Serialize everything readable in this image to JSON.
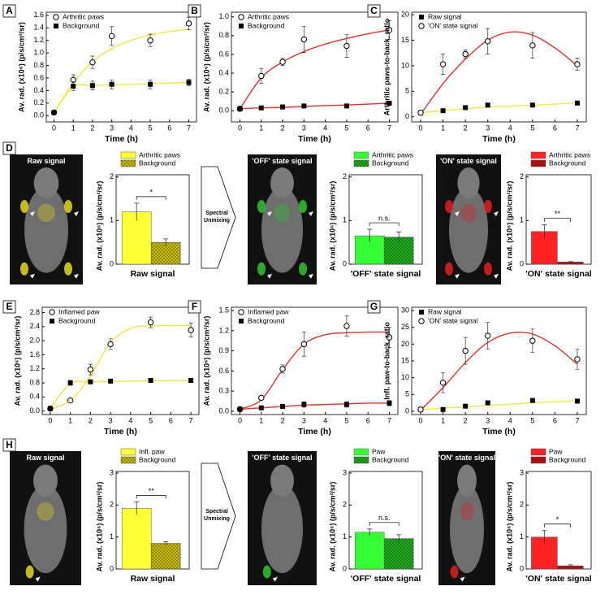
{
  "figure": {
    "image_rows": [
      {
        "panel": "D",
        "images": [
          "Raw signal",
          "'OFF' state signal",
          "'ON' state signal"
        ],
        "arrow": "Spectral Unmixing"
      },
      {
        "panel": "H",
        "images": [
          "Raw signal",
          "'OFF' state signal",
          "'ON' state signal"
        ],
        "arrow": "Spectral Unmixing"
      }
    ]
  },
  "chart_data": [
    {
      "type": "line",
      "panel": "A",
      "x_label": "Time (h)",
      "y_label": "Av. rad. (x10⁶) (p/s/cm²/sr)",
      "legend": "upper left",
      "xlim": [
        -0.4,
        7.4
      ],
      "xticks": [
        0,
        1,
        2,
        3,
        4,
        5,
        6,
        7
      ],
      "ylim": [
        -0.1,
        1.65
      ],
      "yticks": [
        {
          "value": 0,
          "label": "0.0"
        },
        0.2,
        0.4,
        0.6,
        0.8,
        {
          "value": 1,
          "label": "1.0"
        },
        1.2,
        1.4,
        1.6
      ],
      "x": [
        0,
        1,
        2,
        3,
        5,
        7
      ],
      "fit_x": [
        0,
        1,
        2,
        3,
        4,
        5,
        6,
        7
      ],
      "series": [
        {
          "name": "Arthritic paws",
          "marker": "open-circle",
          "color": "#000000",
          "fit_color": "#f5e63c",
          "values": [
            0.05,
            0.57,
            0.85,
            1.27,
            1.2,
            1.47
          ],
          "errors": [
            0.03,
            0.08,
            0.1,
            0.15,
            0.1,
            0.1
          ],
          "fit": [
            0.05,
            0.52,
            0.86,
            1.07,
            1.2,
            1.29,
            1.34,
            1.38
          ]
        },
        {
          "name": "Background",
          "marker": "filled-square",
          "color": "#000000",
          "fit_color": "#f5e63c",
          "values": [
            0.05,
            0.47,
            0.48,
            0.5,
            0.5,
            0.53
          ],
          "errors": [
            0.03,
            0.07,
            0.07,
            0.07,
            0.07,
            0.05
          ],
          "fit": [
            0.05,
            0.46,
            0.48,
            0.49,
            0.5,
            0.51,
            0.52,
            0.53
          ]
        }
      ]
    },
    {
      "type": "line",
      "panel": "B",
      "x_label": "Time (h)",
      "y_label": "Av. rad. (x10⁶) (p/s/cm²/sr)",
      "legend": "upper left",
      "xlim": [
        -0.4,
        7.4
      ],
      "xticks": [
        0,
        1,
        2,
        3,
        4,
        5,
        6,
        7
      ],
      "ylim": [
        -0.12,
        1.05
      ],
      "yticks": [
        {
          "value": 0,
          "label": "0.0"
        },
        0.2,
        0.4,
        0.6,
        0.8,
        {
          "value": 1,
          "label": "1.0"
        }
      ],
      "x": [
        0,
        1,
        2,
        3,
        5,
        7
      ],
      "fit_x": [
        0,
        1,
        2,
        3,
        4,
        5,
        6,
        7
      ],
      "series": [
        {
          "name": "Arthritic paws",
          "marker": "open-circle",
          "color": "#000000",
          "fit_color": "#e0302c",
          "values": [
            0.02,
            0.37,
            0.52,
            0.76,
            0.69,
            0.86
          ],
          "errors": [
            0.02,
            0.08,
            0.04,
            0.14,
            0.12,
            0.1
          ],
          "fit": [
            0.02,
            0.35,
            0.52,
            0.63,
            0.71,
            0.77,
            0.82,
            0.86
          ]
        },
        {
          "name": "Background",
          "marker": "filled-square",
          "color": "#000000",
          "fit_color": "#e0302c",
          "values": [
            0.02,
            0.03,
            0.04,
            0.05,
            0.05,
            0.08
          ],
          "errors": [
            0.01,
            0.01,
            0.01,
            0.01,
            0.01,
            0.01
          ],
          "fit": [
            0.02,
            0.03,
            0.035,
            0.045,
            0.055,
            0.06,
            0.07,
            0.08
          ]
        }
      ]
    },
    {
      "type": "line",
      "panel": "C",
      "x_label": "Time (h)",
      "y_label": "Arthritic paws-to-back. ratio",
      "legend": "upper left",
      "xlim": [
        -0.4,
        7.4
      ],
      "xticks": [
        0,
        1,
        2,
        3,
        4,
        5,
        6,
        7
      ],
      "ylim": [
        -1,
        20.5
      ],
      "yticks": [
        0,
        5,
        10,
        15,
        20
      ],
      "x": [
        0,
        1,
        2,
        3,
        5,
        7
      ],
      "fit_x": [
        0,
        1,
        2,
        3,
        4,
        5,
        6,
        7
      ],
      "series": [
        {
          "name": "Raw signal",
          "marker": "filled-square",
          "color": "#000000",
          "fit_color": "#f5e63c",
          "values": [
            0.8,
            1.2,
            1.8,
            2.3,
            2.3,
            2.7
          ],
          "errors": [
            0.2,
            0.3,
            0.3,
            0.3,
            0.3,
            0.3
          ],
          "fit": [
            0.8,
            1.2,
            1.6,
            1.9,
            2.1,
            2.3,
            2.5,
            2.7
          ]
        },
        {
          "name": "'ON' state signal",
          "marker": "open-circle",
          "color": "#000000",
          "fit_color": "#e0302c",
          "values": [
            0.8,
            10.3,
            12.3,
            14.8,
            14,
            10.3
          ],
          "errors": [
            0.3,
            2,
            0.8,
            2.5,
            2.5,
            1.2
          ],
          "fit": [
            0.5,
            6.5,
            11.3,
            15,
            16.6,
            16,
            13.5,
            10
          ]
        }
      ]
    },
    {
      "type": "bar",
      "y_label": "Av. rad. (x10⁶) (p/s/cm²/sr)",
      "x_label": "Raw signal",
      "annotation": "*",
      "ylim": [
        0,
        2.05
      ],
      "yticks": [
        0,
        1,
        2
      ],
      "series": [
        {
          "name": "Arthritic paws",
          "color": "#ffff33",
          "hatch": false,
          "values": [
            1.2
          ],
          "errors": [
            0.2
          ]
        },
        {
          "name": "Background",
          "color": "#d9c800",
          "hatch": true,
          "values": [
            0.5
          ],
          "errors": [
            0.08
          ]
        }
      ]
    },
    {
      "type": "bar",
      "y_label": "Av. rad. (x10⁶) (p/s/cm²/sr)",
      "x_label": "'OFF' state signal",
      "annotation": "n.s.",
      "ylim": [
        0,
        2.05
      ],
      "yticks": [
        0,
        1,
        2
      ],
      "series": [
        {
          "name": "Arthritic paws",
          "color": "#33ff33",
          "hatch": false,
          "values": [
            0.65
          ],
          "errors": [
            0.15
          ]
        },
        {
          "name": "Background",
          "color": "#22bb22",
          "hatch": true,
          "values": [
            0.62
          ],
          "errors": [
            0.12
          ]
        }
      ]
    },
    {
      "type": "bar",
      "y_label": "Av. rad. (x10⁶) (p/s/cm²/sr)",
      "x_label": "'ON' state signal",
      "annotation": "**",
      "ylim": [
        0,
        2.05
      ],
      "yticks": [
        0,
        1,
        2
      ],
      "series": [
        {
          "name": "Arthritic paws",
          "color": "#ff2222",
          "hatch": false,
          "values": [
            0.75
          ],
          "errors": [
            0.15
          ]
        },
        {
          "name": "Background",
          "color": "#aa1010",
          "hatch": false,
          "values": [
            0.05
          ],
          "errors": [
            0.01
          ]
        }
      ]
    },
    {
      "type": "line",
      "panel": "E",
      "x_label": "Time (h)",
      "y_label": "Av. rad. (x10⁶) (p/s/cm²/sr)",
      "legend": "upper left",
      "xlim": [
        -0.4,
        7.4
      ],
      "xticks": [
        0,
        1,
        2,
        3,
        4,
        5,
        6,
        7
      ],
      "ylim": [
        -0.1,
        2.95
      ],
      "yticks": [
        {
          "value": 0,
          "label": "0.0"
        },
        0.4,
        0.8,
        1.2,
        1.6,
        {
          "value": 2,
          "label": "2.0"
        },
        2.4,
        2.8
      ],
      "x": [
        0,
        1,
        2,
        3,
        5,
        7
      ],
      "fit_x": [
        0,
        1,
        2,
        3,
        4,
        5,
        6,
        7
      ],
      "series": [
        {
          "name": "Inflamed paw",
          "marker": "open-circle",
          "color": "#000000",
          "fit_color": "#f5e63c",
          "values": [
            0.07,
            0.3,
            1.18,
            1.9,
            2.52,
            2.3
          ],
          "errors": [
            0.05,
            0.05,
            0.15,
            0.15,
            0.15,
            0.2
          ],
          "fit": [
            0.05,
            0.3,
            1.0,
            1.95,
            2.35,
            2.42,
            2.43,
            2.43
          ]
        },
        {
          "name": "Background",
          "marker": "filled-square",
          "color": "#000000",
          "fit_color": "#f5e63c",
          "values": [
            0.07,
            0.8,
            0.83,
            0.85,
            0.87,
            0.87
          ],
          "errors": [
            0.05,
            0.07,
            0.05,
            0.05,
            0.05,
            0.05
          ],
          "fit": [
            0.07,
            0.78,
            0.82,
            0.84,
            0.85,
            0.86,
            0.86,
            0.86
          ]
        }
      ]
    },
    {
      "type": "line",
      "panel": "F",
      "x_label": "Time (h)",
      "y_label": "Av. rad. (x10⁶) (p/s/cm²/sr)",
      "legend": "upper left",
      "xlim": [
        -0.4,
        7.4
      ],
      "xticks": [
        0,
        1,
        2,
        3,
        4,
        5,
        6,
        7
      ],
      "ylim": [
        -0.05,
        1.55
      ],
      "yticks": [
        {
          "value": 0,
          "label": "0.0"
        },
        0.3,
        0.6,
        0.9,
        1.2,
        1.5
      ],
      "x": [
        0,
        1,
        2,
        3,
        5,
        7
      ],
      "fit_x": [
        0,
        1,
        2,
        3,
        4,
        5,
        6,
        7
      ],
      "series": [
        {
          "name": "Inflamed paw",
          "marker": "open-circle",
          "color": "#000000",
          "fit_color": "#e0302c",
          "values": [
            0.03,
            0.2,
            0.63,
            1.0,
            1.27,
            1.1
          ],
          "errors": [
            0.02,
            0.03,
            0.06,
            0.18,
            0.15,
            0.15
          ],
          "fit": [
            0.03,
            0.17,
            0.62,
            1.0,
            1.14,
            1.17,
            1.18,
            1.18
          ]
        },
        {
          "name": "Background",
          "marker": "filled-square",
          "color": "#000000",
          "fit_color": "#e0302c",
          "values": [
            0.03,
            0.05,
            0.07,
            0.1,
            0.1,
            0.12
          ],
          "errors": [
            0.02,
            0.02,
            0.03,
            0.04,
            0.04,
            0.04
          ],
          "fit": [
            0.03,
            0.05,
            0.07,
            0.09,
            0.1,
            0.11,
            0.12,
            0.12
          ]
        }
      ]
    },
    {
      "type": "line",
      "panel": "G",
      "x_label": "Time (h)",
      "y_label": "Infl. paw-to-back. ratio",
      "legend": "upper left",
      "xlim": [
        -0.4,
        7.4
      ],
      "xticks": [
        0,
        1,
        2,
        3,
        4,
        5,
        6,
        7
      ],
      "ylim": [
        -1,
        31
      ],
      "yticks": [
        0,
        5,
        10,
        15,
        20,
        25,
        30
      ],
      "x": [
        0,
        1,
        2,
        3,
        5,
        7
      ],
      "fit_x": [
        0,
        1,
        2,
        3,
        4,
        5,
        6,
        7
      ],
      "series": [
        {
          "name": "Raw signal",
          "marker": "filled-square",
          "color": "#000000",
          "fit_color": "#f5e63c",
          "values": [
            0.5,
            0.5,
            1.5,
            2.5,
            3.2,
            3
          ],
          "errors": [
            0.2,
            0.2,
            0.3,
            0.3,
            0.3,
            0.3
          ],
          "fit": [
            0.5,
            0.9,
            1.3,
            1.7,
            2.1,
            2.5,
            2.8,
            3.1
          ]
        },
        {
          "name": "'ON' state signal",
          "marker": "open-circle",
          "color": "#000000",
          "fit_color": "#e0302c",
          "values": [
            0.5,
            8.5,
            18,
            22.5,
            21,
            15.5
          ],
          "errors": [
            0.3,
            3,
            4,
            4,
            3.5,
            3
          ],
          "fit": [
            0.3,
            7,
            14.5,
            20.5,
            23.3,
            23,
            19.5,
            14
          ]
        }
      ]
    },
    {
      "type": "bar",
      "y_label": "Av. rad. (x10⁶) (p/s/cm²/sr)",
      "x_label": "Raw signal",
      "annotation": "**",
      "ylim": [
        0,
        3.05
      ],
      "yticks": [
        0,
        1,
        2,
        3
      ],
      "series": [
        {
          "name": "Infl. paw",
          "color": "#ffff33",
          "hatch": false,
          "values": [
            1.9
          ],
          "errors": [
            0.2
          ]
        },
        {
          "name": "Background",
          "color": "#d9c800",
          "hatch": true,
          "values": [
            0.8
          ],
          "errors": [
            0.05
          ]
        }
      ]
    },
    {
      "type": "bar",
      "y_label": "Av. rad. (x10⁶) (p/s/cm²/sr)",
      "x_label": "'OFF' state signal",
      "annotation": "n.s.",
      "ylim": [
        0,
        3.05
      ],
      "yticks": [
        0,
        1,
        2,
        3
      ],
      "series": [
        {
          "name": "Paw",
          "color": "#33ff33",
          "hatch": false,
          "values": [
            1.15
          ],
          "errors": [
            0.1
          ]
        },
        {
          "name": "Background",
          "color": "#22bb22",
          "hatch": true,
          "values": [
            0.95
          ],
          "errors": [
            0.12
          ]
        }
      ]
    },
    {
      "type": "bar",
      "y_label": "Av. rad. (x10⁶) (p/s/cm²/sr)",
      "x_label": "'ON' state signal",
      "annotation": "*",
      "ylim": [
        0,
        3.05
      ],
      "yticks": [
        0,
        1,
        2,
        3
      ],
      "series": [
        {
          "name": "Paw",
          "color": "#ff2222",
          "hatch": false,
          "values": [
            1.0
          ],
          "errors": [
            0.2
          ]
        },
        {
          "name": "Background",
          "color": "#aa1010",
          "hatch": false,
          "values": [
            0.1
          ],
          "errors": [
            0.03
          ]
        }
      ]
    }
  ]
}
